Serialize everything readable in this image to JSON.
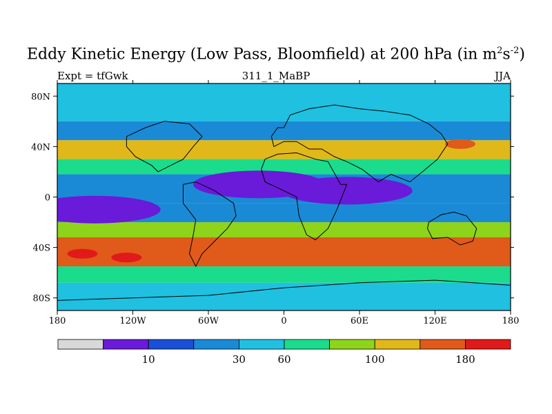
{
  "title": "Eddy Kinetic Energy (Low Pass, Bloomfield) at 200 hPa (in m",
  "title_sup1": "2",
  "title_mid": "s",
  "title_sup2": "-2",
  "title_end": ")",
  "expt_label": "Expt = tfGwk",
  "run_id": "311_1_MaBP",
  "season": "JJA",
  "colors": {
    "levels": [
      "#d8d8d8",
      "#6a1ad9",
      "#1a4fd8",
      "#1a8ad6",
      "#1fc0e0",
      "#1adc8c",
      "#8ed41a",
      "#e0b81a",
      "#e05a1a",
      "#e01a1a"
    ],
    "line": "#000000"
  },
  "chart_data": {
    "type": "heatmap",
    "title": "Eddy Kinetic Energy (Low Pass, Bloomfield) at 200 hPa (in m^2 s^-2)",
    "variable": "Eddy Kinetic Energy",
    "units": "m^2 s^-2",
    "pressure_level_hPa": 200,
    "x_axis": {
      "range": [
        -180,
        180
      ],
      "ticks": [
        -180,
        -120,
        -60,
        0,
        60,
        120,
        180
      ],
      "tick_labels": [
        "180",
        "120W",
        "60W",
        "0",
        "60E",
        "120E",
        "180"
      ]
    },
    "y_axis": {
      "range": [
        -90,
        90
      ],
      "ticks": [
        80,
        40,
        0,
        -40,
        -80
      ],
      "tick_labels": [
        "80N",
        "40N",
        "0",
        "40S",
        "80S"
      ]
    },
    "colorbar": {
      "tick_values": [
        10,
        30,
        60,
        100,
        180
      ],
      "tick_labels": [
        "10",
        "30",
        "60",
        "100",
        "180"
      ],
      "n_bins": 10
    },
    "zonal_bands": [
      {
        "lat_range": [
          60,
          90
        ],
        "level_index": 4
      },
      {
        "lat_range": [
          45,
          60
        ],
        "level_index": 3
      },
      {
        "lat_range": [
          30,
          45
        ],
        "level_index": 7
      },
      {
        "lat_range": [
          18,
          30
        ],
        "level_index": 5
      },
      {
        "lat_range": [
          -5,
          18
        ],
        "level_index": 3
      },
      {
        "lat_range": [
          -20,
          -5
        ],
        "level_index": 3
      },
      {
        "lat_range": [
          -32,
          -20
        ],
        "level_index": 6
      },
      {
        "lat_range": [
          -55,
          -32
        ],
        "level_index": 8
      },
      {
        "lat_range": [
          -68,
          -55
        ],
        "level_index": 5
      },
      {
        "lat_range": [
          -90,
          -68
        ],
        "level_index": 4
      }
    ],
    "features": [
      {
        "name": "NH storm track max",
        "lon": 140,
        "lat": 42,
        "level_index": 8
      },
      {
        "name": "SH storm track max west",
        "lon": -160,
        "lat": -45,
        "level_index": 9
      },
      {
        "name": "SH storm track max east",
        "lon": -125,
        "lat": -48,
        "level_index": 9
      },
      {
        "name": "Tropical minimum Africa-Asia",
        "lon": 50,
        "lat": 5,
        "level_index": 1
      },
      {
        "name": "Tropical minimum Atlantic",
        "lon": -20,
        "lat": 10,
        "level_index": 1
      },
      {
        "name": "Tropical minimum Pacific",
        "lon": -150,
        "lat": -10,
        "level_index": 1
      }
    ]
  }
}
